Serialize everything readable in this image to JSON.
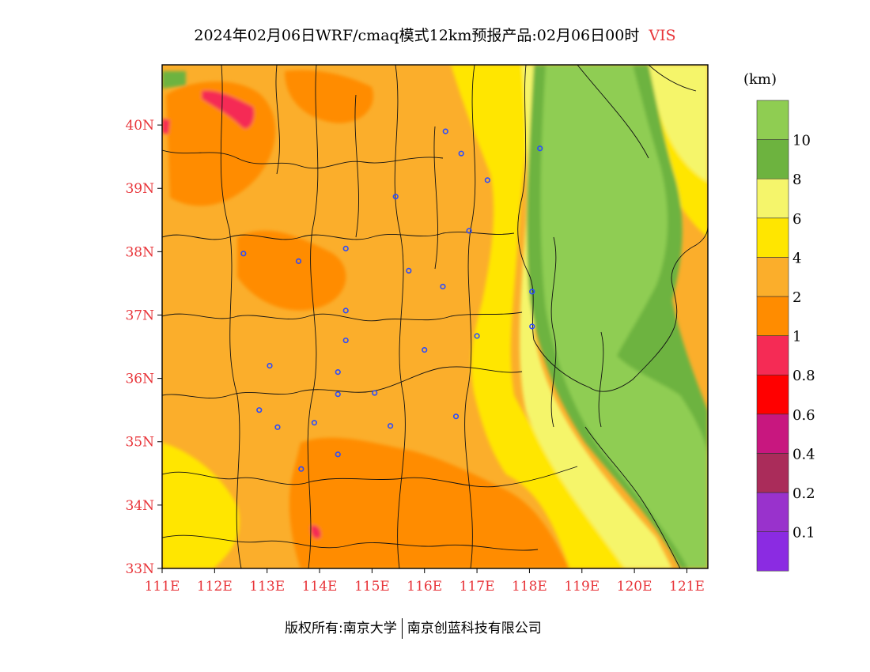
{
  "title": {
    "text": "2024年02月06日WRF/cmaq模式12km预报产品:02月06日00时",
    "variable": "VIS"
  },
  "legend": {
    "unit": "(km)",
    "bands": [
      {
        "color": "#8b2be2",
        "label": "0.1"
      },
      {
        "color": "#9932cc",
        "label": "0.2"
      },
      {
        "color": "#aa2c5a",
        "label": "0.4"
      },
      {
        "color": "#c8177f",
        "label": "0.6"
      },
      {
        "color": "#ff0000",
        "label": "0.8"
      },
      {
        "color": "#f52b55",
        "label": "1"
      },
      {
        "color": "#ff8c00",
        "label": "2"
      },
      {
        "color": "#fbae2b",
        "label": "4"
      },
      {
        "color": "#ffe600",
        "label": "6"
      },
      {
        "color": "#f5f56b",
        "label": "8"
      },
      {
        "color": "#6db33f",
        "label": "10"
      },
      {
        "color": "#8fcd52",
        "label": ""
      }
    ]
  },
  "axes": {
    "x_ticks": [
      "111E",
      "112E",
      "113E",
      "114E",
      "115E",
      "116E",
      "117E",
      "118E",
      "119E",
      "120E",
      "121E"
    ],
    "y_ticks": [
      "40N",
      "39N",
      "38N",
      "37N",
      "36N",
      "35N",
      "34N",
      "33N"
    ]
  },
  "footer": {
    "copyright": "版权所有:南京大学",
    "company": "南京创蓝科技有限公司"
  },
  "colors": {
    "accent": "#e8353a",
    "station": "#2a4bff"
  },
  "stations": [
    {
      "lon": 116.4,
      "lat": 39.9
    },
    {
      "lon": 116.7,
      "lat": 39.55
    },
    {
      "lon": 117.2,
      "lat": 39.13
    },
    {
      "lon": 118.2,
      "lat": 39.63
    },
    {
      "lon": 115.45,
      "lat": 38.87
    },
    {
      "lon": 116.85,
      "lat": 38.33
    },
    {
      "lon": 112.55,
      "lat": 37.97
    },
    {
      "lon": 113.6,
      "lat": 37.85
    },
    {
      "lon": 114.5,
      "lat": 38.05
    },
    {
      "lon": 115.7,
      "lat": 37.7
    },
    {
      "lon": 116.35,
      "lat": 37.45
    },
    {
      "lon": 118.05,
      "lat": 37.37
    },
    {
      "lon": 114.5,
      "lat": 37.07
    },
    {
      "lon": 118.05,
      "lat": 36.82
    },
    {
      "lon": 114.5,
      "lat": 36.6
    },
    {
      "lon": 116.0,
      "lat": 36.45
    },
    {
      "lon": 117.0,
      "lat": 36.67
    },
    {
      "lon": 113.05,
      "lat": 36.2
    },
    {
      "lon": 114.35,
      "lat": 36.1
    },
    {
      "lon": 114.35,
      "lat": 35.75
    },
    {
      "lon": 115.05,
      "lat": 35.77
    },
    {
      "lon": 112.85,
      "lat": 35.5
    },
    {
      "lon": 113.9,
      "lat": 35.3
    },
    {
      "lon": 113.2,
      "lat": 35.23
    },
    {
      "lon": 115.35,
      "lat": 35.25
    },
    {
      "lon": 116.6,
      "lat": 35.4
    },
    {
      "lon": 114.35,
      "lat": 34.8
    },
    {
      "lon": 113.65,
      "lat": 34.57
    }
  ]
}
